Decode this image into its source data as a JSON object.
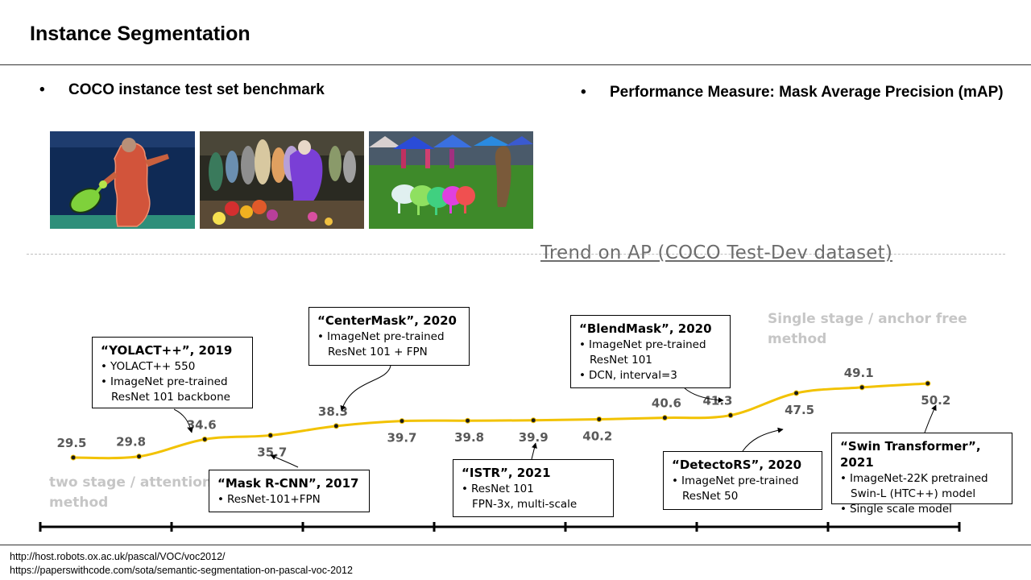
{
  "header": {
    "title": "Instance Segmentation"
  },
  "bullets": {
    "left": "COCO instance test set benchmark",
    "right": "Performance Measure: Mask Average Precision (mAP)",
    "dot": "•"
  },
  "chart_data": {
    "type": "line",
    "title": "Trend on AP (COCO Test-Dev dataset)",
    "xlabel": "",
    "ylabel": "",
    "x": [
      1,
      2,
      3,
      4,
      5,
      6,
      7,
      8,
      9,
      10,
      11,
      12,
      13,
      14
    ],
    "values": [
      29.5,
      29.8,
      34.6,
      35.7,
      38.3,
      39.7,
      39.8,
      39.9,
      40.2,
      40.6,
      41.3,
      47.5,
      49.1,
      50.2
    ],
    "labels": [
      "29.5",
      "29.8",
      "34.6",
      "35.7",
      "38.3",
      "39.7",
      "39.8",
      "39.9",
      "40.2",
      "40.6",
      "41.3",
      "47.5",
      "49.1",
      "50.2"
    ],
    "grid": false,
    "line_color": "#F2C200",
    "point_color": "#1a1a1a",
    "annotations": {
      "two_stage": [
        "two stage / attention",
        "method"
      ],
      "single_stage": [
        "Single stage / anchor free",
        "method"
      ]
    }
  },
  "callouts": [
    {
      "id": "yolact",
      "title": "“YOLACT++”, 2019",
      "lines": [
        {
          "text": "YOLACT++ 550",
          "bullet": true
        },
        {
          "text": "ImageNet pre-trained",
          "bullet": true
        },
        {
          "text": "ResNet 101 backbone",
          "bullet": false
        }
      ]
    },
    {
      "id": "centermask",
      "title": "“CenterMask”, 2020",
      "lines": [
        {
          "text": "ImageNet pre-trained",
          "bullet": true
        },
        {
          "text": "ResNet 101 + FPN",
          "bullet": false
        }
      ]
    },
    {
      "id": "blendmask",
      "title": "“BlendMask”, 2020",
      "lines": [
        {
          "text": "ImageNet pre-trained",
          "bullet": true
        },
        {
          "text": "ResNet 101",
          "bullet": false
        },
        {
          "text": "DCN, interval=3",
          "bullet": true
        }
      ]
    },
    {
      "id": "maskrcnn",
      "title": "“Mask R-CNN”, 2017",
      "lines": [
        {
          "text": "ResNet-101+FPN",
          "bullet": true
        }
      ]
    },
    {
      "id": "istr",
      "title": "“ISTR”, 2021",
      "lines": [
        {
          "text": "ResNet 101",
          "bullet": true
        },
        {
          "text": "FPN-3x, multi-scale",
          "bullet": false
        }
      ]
    },
    {
      "id": "detectors",
      "title": "“DetectoRS”, 2020",
      "lines": [
        {
          "text": "ImageNet pre-trained",
          "bullet": true
        },
        {
          "text": "ResNet 50",
          "bullet": false
        }
      ]
    },
    {
      "id": "swin",
      "title": "“Swin Transformer”, 2021",
      "lines": [
        {
          "text": "ImageNet-22K pretrained",
          "bullet": true
        },
        {
          "text": "Swin-L (HTC++) model",
          "bullet": false
        },
        {
          "text": "Single scale model",
          "bullet": true
        }
      ]
    }
  ],
  "sources": [
    "http://host.robots.ox.ac.uk/pascal/VOC/voc2012/",
    "https://paperswithcode.com/sota/semantic-segmentation-on-pascal-voc-2012"
  ],
  "images": [
    {
      "name": "tennis-player-segmentation-image"
    },
    {
      "name": "market-crowd-segmentation-image"
    },
    {
      "name": "sheep-field-segmentation-image"
    }
  ]
}
